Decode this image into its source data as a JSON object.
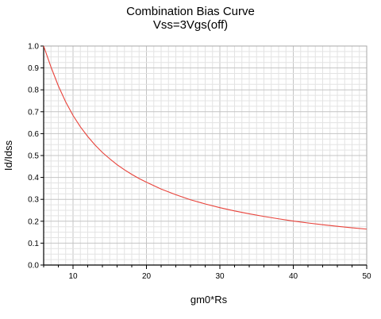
{
  "chart_data": {
    "type": "line",
    "title": "Combination Bias Curve",
    "subtitle": "Vss=3Vgs(off)",
    "xlabel": "gm0*Rs",
    "ylabel": "Id/Idss",
    "xlim": [
      6,
      50
    ],
    "ylim": [
      0,
      1.0
    ],
    "x_ticks": [
      10,
      20,
      30,
      40,
      50
    ],
    "y_ticks": [
      0.0,
      0.1,
      0.2,
      0.3,
      0.4,
      0.5,
      0.6,
      0.7,
      0.8,
      0.9,
      1.0
    ],
    "grid": true,
    "legend": "none",
    "series": [
      {
        "color": "#e8423a",
        "x": [
          6,
          7,
          8,
          9,
          10,
          11,
          12,
          13,
          14,
          15,
          16,
          17,
          18,
          19,
          20,
          22,
          24,
          26,
          28,
          30,
          32,
          34,
          36,
          38,
          40,
          42,
          44,
          46,
          48,
          50
        ],
        "y": [
          1.0,
          0.904,
          0.818,
          0.745,
          0.683,
          0.631,
          0.587,
          0.548,
          0.514,
          0.485,
          0.458,
          0.435,
          0.414,
          0.395,
          0.378,
          0.347,
          0.321,
          0.298,
          0.279,
          0.262,
          0.247,
          0.234,
          0.222,
          0.211,
          0.201,
          0.192,
          0.184,
          0.177,
          0.17,
          0.164
        ]
      }
    ]
  }
}
